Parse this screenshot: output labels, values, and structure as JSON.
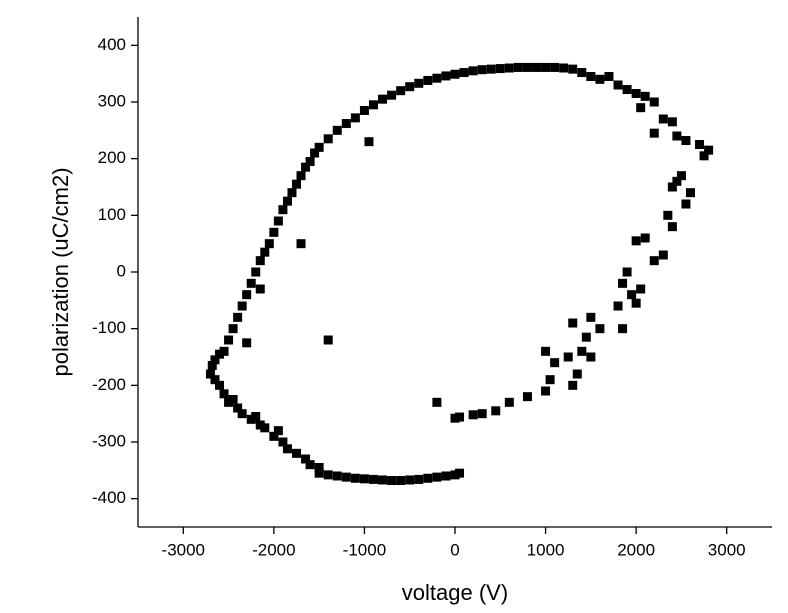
{
  "chart_data": {
    "type": "scatter",
    "x_label": "voltage (V)",
    "y_label": "polarization (uC/cm2)",
    "color": "#000000",
    "xlim": [
      -3500,
      3500
    ],
    "ylim": [
      -450,
      450
    ],
    "xticks": [
      -3000,
      -2000,
      -1000,
      0,
      1000,
      2000,
      3000
    ],
    "yticks": [
      -400,
      -300,
      -200,
      -100,
      0,
      100,
      200,
      300,
      400
    ],
    "x": [
      50,
      0,
      -100,
      -200,
      -300,
      -400,
      -500,
      -600,
      -700,
      -800,
      -900,
      -1000,
      -1100,
      -1200,
      -1300,
      -1400,
      -1500,
      -1600,
      -1500,
      -1650,
      -1750,
      -1850,
      -1900,
      -2000,
      -1950,
      -2100,
      -2150,
      -2250,
      -2200,
      -2350,
      -2400,
      -2500,
      -2450,
      -2550,
      -2600,
      -2650,
      -2700,
      -2680,
      -2650,
      -2600,
      -2550,
      -2500,
      -2450,
      -2400,
      -2350,
      -2300,
      -2250,
      -2200,
      -2150,
      -2100,
      -2050,
      -2000,
      -1950,
      -1900,
      -1850,
      -1800,
      -1750,
      -1700,
      -1650,
      -1600,
      -1550,
      -1500,
      -1400,
      -1300,
      -1200,
      -1100,
      -1000,
      -900,
      -800,
      -700,
      -600,
      -500,
      -400,
      -300,
      -200,
      -100,
      0,
      100,
      200,
      300,
      400,
      500,
      600,
      700,
      800,
      900,
      1000,
      1100,
      1200,
      1300,
      1400,
      1500,
      1600,
      1700,
      1800,
      1900,
      2000,
      2100,
      2200,
      2050,
      2300,
      2400,
      2200,
      2450,
      2550,
      2700,
      2800,
      2750,
      2500,
      2450,
      2600,
      2550,
      2400,
      2350,
      2400,
      2100,
      2000,
      2300,
      2200,
      1900,
      1850,
      2050,
      1950,
      1800,
      2000,
      1850,
      1500,
      1600,
      1300,
      1450,
      1500,
      1400,
      1250,
      1100,
      1000,
      1350,
      1300,
      1050,
      1000,
      800,
      600,
      450,
      300,
      200,
      50,
      0,
      -200,
      -1400,
      -1700,
      -2150,
      -2300,
      -950
    ],
    "y": [
      -355,
      -358,
      -360,
      -362,
      -364,
      -366,
      -367,
      -368,
      -368,
      -367,
      -366,
      -365,
      -364,
      -362,
      -360,
      -358,
      -355,
      -340,
      -345,
      -330,
      -320,
      -312,
      -300,
      -290,
      -280,
      -275,
      -270,
      -260,
      -255,
      -250,
      -240,
      -230,
      -225,
      -215,
      -200,
      -190,
      -180,
      -165,
      -155,
      -145,
      -140,
      -120,
      -100,
      -80,
      -60,
      -40,
      -20,
      0,
      20,
      35,
      50,
      70,
      90,
      110,
      125,
      140,
      155,
      170,
      185,
      195,
      210,
      220,
      235,
      250,
      262,
      272,
      285,
      295,
      305,
      312,
      320,
      327,
      333,
      338,
      342,
      346,
      349,
      352,
      355,
      357,
      358,
      359,
      360,
      361,
      361,
      361,
      361,
      361,
      360,
      358,
      352,
      345,
      340,
      345,
      330,
      322,
      315,
      310,
      300,
      290,
      270,
      265,
      245,
      240,
      232,
      225,
      215,
      205,
      170,
      160,
      140,
      120,
      150,
      100,
      80,
      60,
      55,
      30,
      20,
      0,
      -20,
      -30,
      -40,
      -60,
      -55,
      -100,
      -80,
      -100,
      -90,
      -115,
      -150,
      -140,
      -150,
      -160,
      -140,
      -180,
      -200,
      -190,
      -210,
      -220,
      -230,
      -245,
      -250,
      -252,
      -256,
      -258,
      -230,
      -120,
      50,
      -30,
      -125,
      230
    ]
  }
}
